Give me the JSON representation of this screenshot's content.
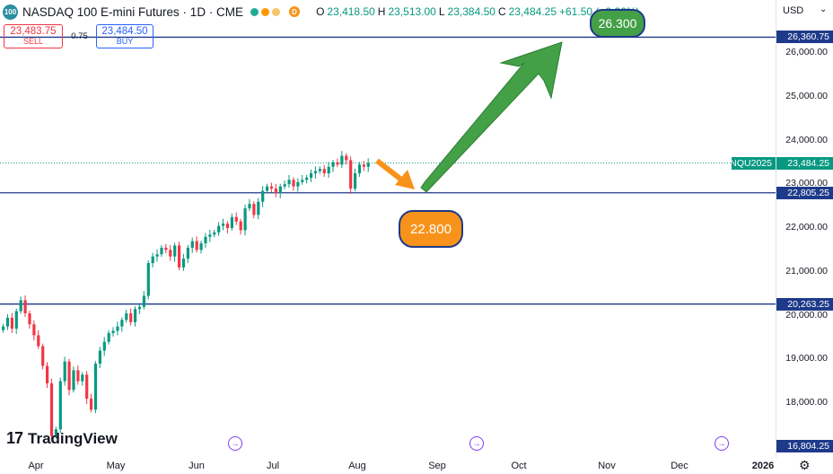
{
  "header": {
    "symbol_badge": "100",
    "title": "NASDAQ 100 E-mini Futures · 1D · CME",
    "d_badge": "D",
    "o_label": "O",
    "o": "23,418.50",
    "h_label": "H",
    "h": "23,513.00",
    "l_label": "L",
    "l": "23,384.50",
    "c_label": "C",
    "c": "23,484.25",
    "change": "+61.50 (+0.26%)",
    "dot_colors": [
      "#22ab94",
      "#ff9800",
      "#f7c56b"
    ]
  },
  "trade": {
    "sell_price": "23,483.75",
    "sell_label": "SELL",
    "spread": "0.75",
    "buy_price": "23,484.50",
    "buy_label": "BUY"
  },
  "axis": {
    "currency": "USD",
    "settings_icon": "gear-icon"
  },
  "annotations": {
    "target_high": "26.300",
    "target_low": "22.800"
  },
  "brand": {
    "name": "TradingView"
  },
  "price_tags": {
    "symbol": "NQU2025",
    "last": "23,484.25"
  },
  "colors": {
    "up": "#089981",
    "down": "#f23645",
    "levels": "#1e3a8a",
    "green_arrow": "#43a047",
    "orange_arrow": "#f7931a"
  },
  "chart_data": {
    "type": "candlestick",
    "yticks": [
      "26,000.00",
      "25,000.00",
      "24,000.00",
      "23,000.00",
      "22,000.00",
      "21,000.00",
      "20,000.00",
      "19,000.00",
      "18,000.00"
    ],
    "xticks": [
      "Apr",
      "May",
      "Jun",
      "Jul",
      "Aug",
      "Sep",
      "Oct",
      "Nov",
      "Dec",
      "2026"
    ],
    "levels": [
      {
        "label": "26,360.75",
        "value": 26360.75
      },
      {
        "label": "22,805.25",
        "value": 22805.25
      },
      {
        "label": "20,263.25",
        "value": 20263.25
      },
      {
        "label": "16,804.25",
        "value": 16804.25
      }
    ],
    "last_price": 23484.25,
    "closes": [
      19750,
      19950,
      19700,
      20100,
      20350,
      20050,
      19800,
      19550,
      19300,
      18850,
      18450,
      17250,
      17400,
      18500,
      18950,
      18300,
      18750,
      18500,
      18650,
      18100,
      17850,
      18900,
      19200,
      19400,
      19600,
      19650,
      19750,
      19900,
      20050,
      19850,
      20150,
      20200,
      20450,
      21200,
      21350,
      21400,
      21550,
      21500,
      21350,
      21600,
      21100,
      21300,
      21550,
      21700,
      21500,
      21650,
      21800,
      21850,
      21900,
      22050,
      22100,
      22000,
      22250,
      22150,
      21950,
      22450,
      22550,
      22300,
      22600,
      22850,
      22950,
      22900,
      22800,
      22950,
      23000,
      23100,
      22950,
      23050,
      23100,
      23150,
      23250,
      23300,
      23350,
      23250,
      23400,
      23500,
      23450,
      23650,
      23550,
      22900,
      23250,
      23450,
      23400,
      23484
    ]
  }
}
